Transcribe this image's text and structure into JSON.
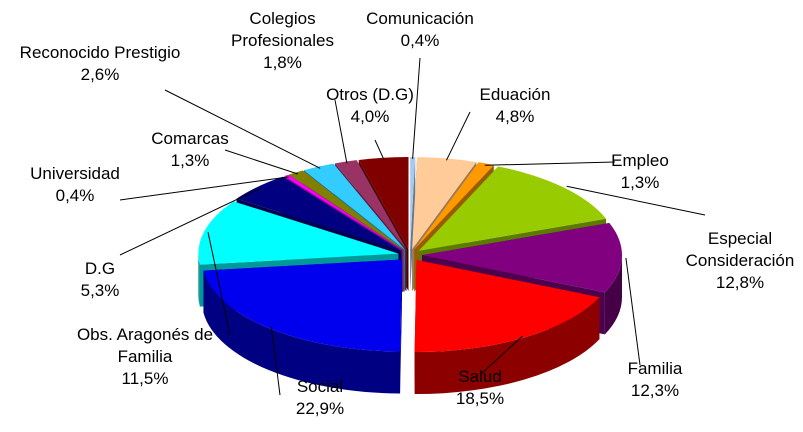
{
  "chart_data": {
    "type": "pie3d",
    "categories": [
      "Comunicación",
      "Eduación",
      "Empleo",
      "Especial Consideración",
      "Familia",
      "Salud",
      "Social",
      "Obs. Aragonés de Familia",
      "D.G",
      "Universidad",
      "Comarcas",
      "Reconocido Prestigio",
      "Colegios Profesionales",
      "Otros (D.G)"
    ],
    "values": [
      0.4,
      4.8,
      1.3,
      12.8,
      12.3,
      18.5,
      22.9,
      11.5,
      5.3,
      0.4,
      1.3,
      2.6,
      1.8,
      4.0
    ],
    "value_labels": [
      "0,4%",
      "4,8%",
      "1,3%",
      "12,8%",
      "12,3%",
      "18,5%",
      "22,9%",
      "11,5%",
      "5,3%",
      "0,4%",
      "1,3%",
      "2,6%",
      "1,8%",
      "4,0%"
    ],
    "colors": [
      "#a6caf0",
      "#ffcc99",
      "#ff9900",
      "#99cc00",
      "#800080",
      "#ff0000",
      "#0000ee",
      "#00ffff",
      "#000080",
      "#ff00ff",
      "#808000",
      "#33ccff",
      "#993366",
      "#800000"
    ]
  }
}
